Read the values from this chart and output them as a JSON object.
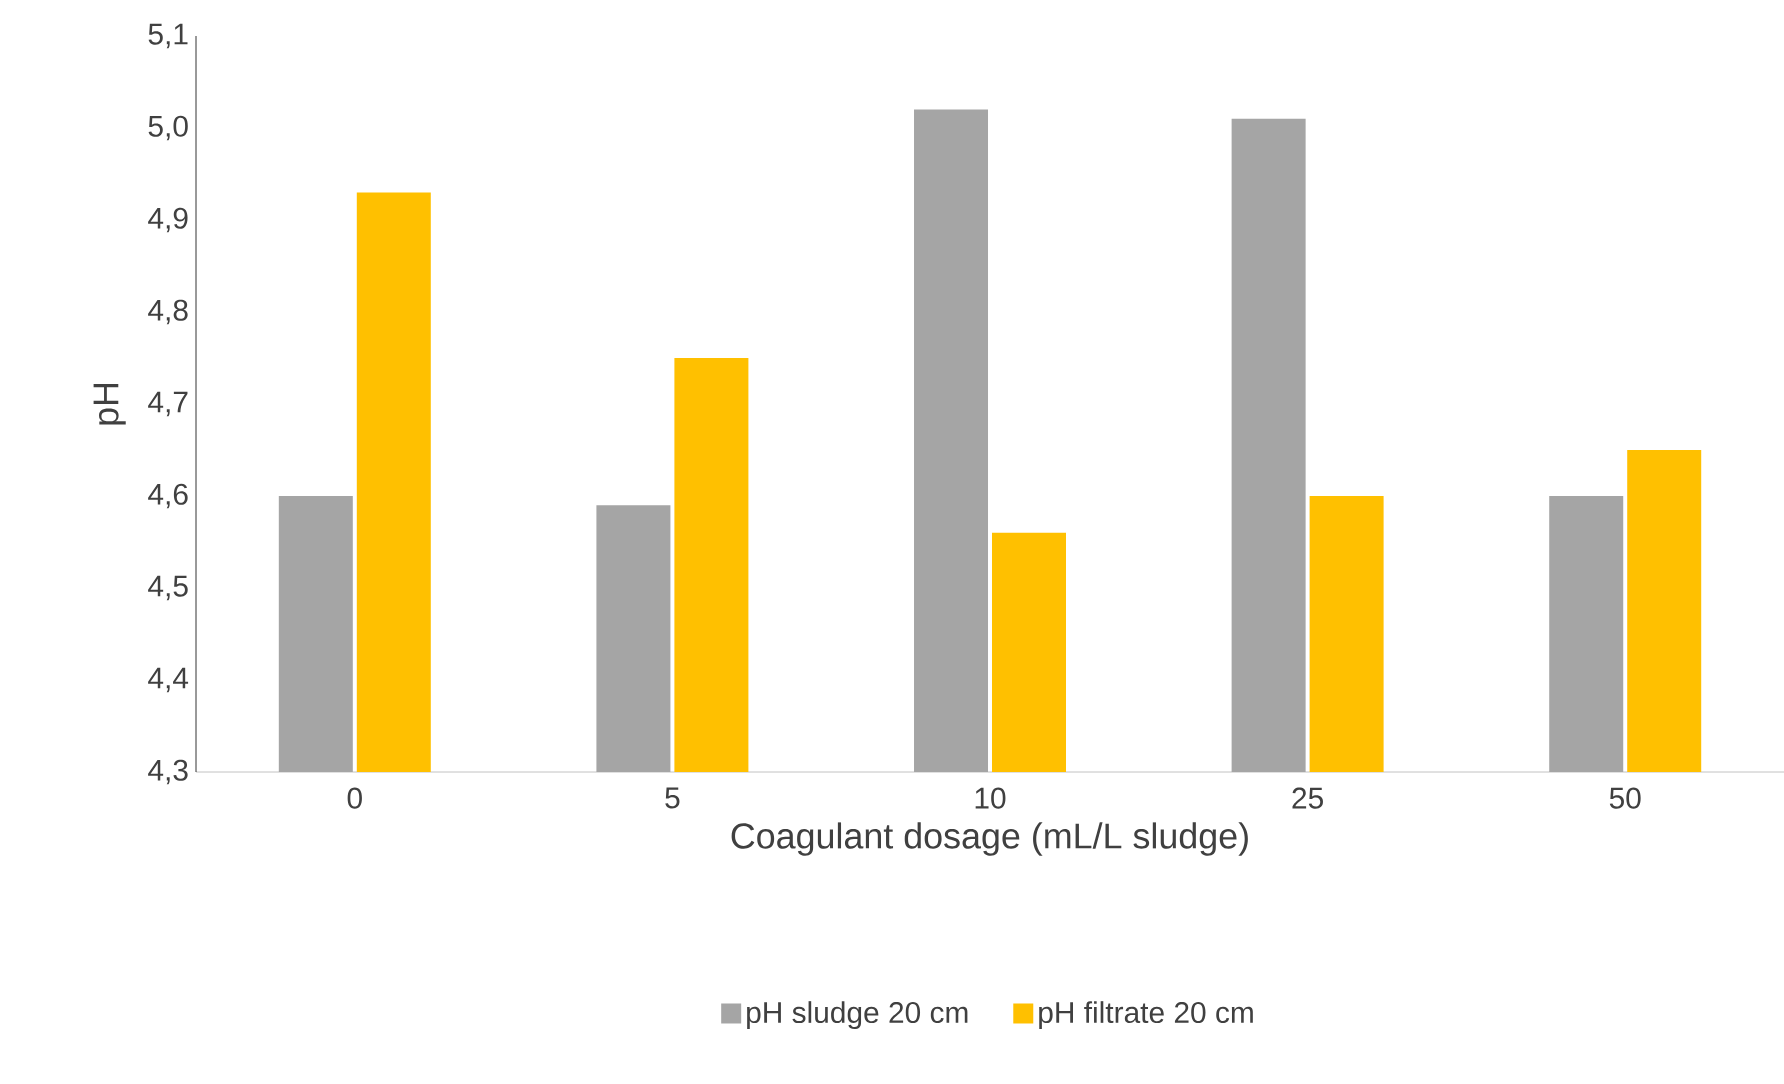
{
  "chart_data": {
    "type": "bar",
    "xlabel": "Coagulant dosage (mL/L sludge)",
    "ylabel": "pH",
    "categories": [
      "0",
      "5",
      "10",
      "25",
      "50"
    ],
    "series": [
      {
        "name": "pH sludge 20 cm",
        "color": "#a5a5a5",
        "values": [
          4.6,
          4.59,
          5.02,
          5.01,
          4.6
        ]
      },
      {
        "name": "pH filtrate 20 cm",
        "color": "#ffc000",
        "values": [
          4.93,
          4.75,
          4.56,
          4.6,
          4.65
        ]
      }
    ],
    "ylim": [
      4.3,
      5.1
    ],
    "yticks": [
      {
        "value": 4.3,
        "label": "4,3"
      },
      {
        "value": 4.4,
        "label": "4,4"
      },
      {
        "value": 4.5,
        "label": "4,5"
      },
      {
        "value": 4.6,
        "label": "4,6"
      },
      {
        "value": 4.7,
        "label": "4,7"
      },
      {
        "value": 4.8,
        "label": "4,8"
      },
      {
        "value": 4.9,
        "label": "4,9"
      },
      {
        "value": 5.0,
        "label": "5,0"
      },
      {
        "value": 5.1,
        "label": "5,1"
      }
    ],
    "grid": false,
    "legend": "bottom"
  }
}
